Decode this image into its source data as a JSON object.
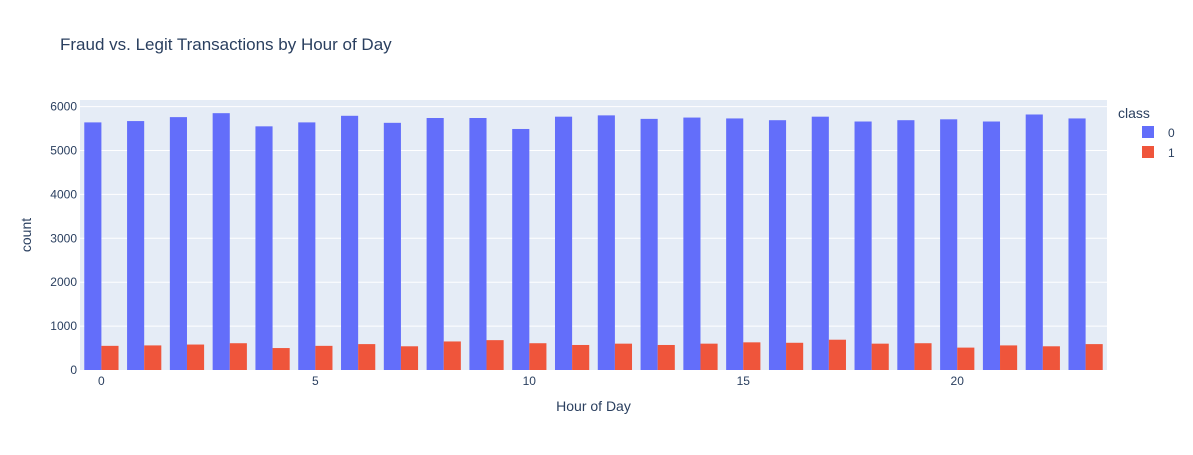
{
  "chart_data": {
    "type": "bar",
    "barmode": "group",
    "title": "Fraud vs. Legit Transactions by Hour of Day",
    "xlabel": "Hour of Day",
    "ylabel": "count",
    "x": [
      0,
      1,
      2,
      3,
      4,
      5,
      6,
      7,
      8,
      9,
      10,
      11,
      12,
      13,
      14,
      15,
      16,
      17,
      18,
      19,
      20,
      21,
      22,
      23
    ],
    "xticks": [
      0,
      5,
      10,
      15,
      20
    ],
    "yticks": [
      0,
      1000,
      2000,
      3000,
      4000,
      5000,
      6000
    ],
    "xlim": [
      -0.5,
      23.5
    ],
    "ylim": [
      0,
      6150
    ],
    "grid": true,
    "legend": {
      "title": "class",
      "placement": "top-right"
    },
    "series": [
      {
        "name": "0",
        "color": "#636efa",
        "values": [
          5640,
          5670,
          5760,
          5850,
          5550,
          5640,
          5790,
          5630,
          5740,
          5740,
          5490,
          5770,
          5800,
          5720,
          5750,
          5730,
          5690,
          5770,
          5660,
          5690,
          5710,
          5660,
          5820,
          5730
        ]
      },
      {
        "name": "1",
        "color": "#ef553b",
        "values": [
          550,
          560,
          580,
          610,
          500,
          550,
          590,
          540,
          650,
          680,
          610,
          570,
          600,
          570,
          600,
          630,
          620,
          690,
          600,
          610,
          510,
          560,
          540,
          590
        ]
      }
    ]
  }
}
